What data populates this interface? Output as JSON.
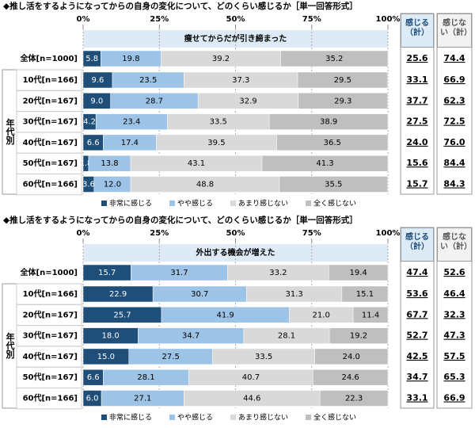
{
  "chart_data": [
    {
      "type": "bar",
      "orientation": "horizontal",
      "stacked": true,
      "title": "◆推し活をするようになってからの自身の変化について、どのくらい感じるか［単一回答形式］",
      "subtitle": "痩せてからだが引き締まった",
      "categories": [
        "全体[n=1000]",
        "10代[n=166]",
        "20代[n=167]",
        "30代[n=167]",
        "40代[n=167]",
        "50代[n=167]",
        "60代[n=166]"
      ],
      "group_label": "年代別",
      "xlim": [
        0,
        100
      ],
      "xticks": [
        {
          "value": 0,
          "label": "0%"
        },
        {
          "value": 25,
          "label": "25%"
        },
        {
          "value": 50,
          "label": "50%"
        },
        {
          "value": 75,
          "label": "75%"
        },
        {
          "value": 100,
          "label": "100%"
        }
      ],
      "grid": true,
      "legend": "bottom",
      "series": [
        {
          "name": "非常に感じる",
          "color": "#1f4e79",
          "values": [
            5.8,
            9.6,
            9.0,
            4.2,
            6.6,
            1.8,
            3.6
          ],
          "value_labels": [
            "5.8",
            "9.6",
            "9.0",
            "4.2",
            "6.6",
            "1.8",
            "3.6"
          ]
        },
        {
          "name": "やや感じる",
          "color": "#9dc3e6",
          "values": [
            19.8,
            23.5,
            28.7,
            23.4,
            17.4,
            13.8,
            12.0
          ],
          "value_labels": [
            "19.8",
            "23.5",
            "28.7",
            "23.4",
            "17.4",
            "13.8",
            "12.0"
          ]
        },
        {
          "name": "あまり感じない",
          "color": "#d9d9d9",
          "values": [
            39.2,
            37.3,
            32.9,
            33.5,
            39.5,
            43.1,
            48.8
          ]
        },
        {
          "name": "全く感じない",
          "color": "#bfbfbf",
          "values": [
            35.2,
            29.5,
            29.3,
            38.9,
            36.5,
            41.3,
            35.5
          ]
        }
      ],
      "totals": [
        {
          "name": "感じる（計）",
          "values": [
            25.6,
            33.1,
            37.7,
            27.5,
            24.0,
            15.6,
            15.7
          ],
          "value_labels": [
            "25.6",
            "33.1",
            "37.7",
            "27.5",
            "24.0",
            "15.6",
            "15.7"
          ]
        },
        {
          "name": "感じない（計）",
          "values": [
            74.4,
            66.9,
            62.3,
            72.5,
            76.0,
            84.4,
            84.3
          ],
          "value_labels": [
            "74.4",
            "66.9",
            "62.3",
            "72.5",
            "76.0",
            "84.4",
            "84.3"
          ]
        }
      ]
    },
    {
      "type": "bar",
      "orientation": "horizontal",
      "stacked": true,
      "title": "◆推し活をするようになってからの自身の変化について、どのくらい感じるか［単一回答形式］",
      "subtitle": "外出する機会が増えた",
      "categories": [
        "全体[n=1000]",
        "10代[n=166]",
        "20代[n=167]",
        "30代[n=167]",
        "40代[n=167]",
        "50代[n=167]",
        "60代[n=166]"
      ],
      "group_label": "年代別",
      "xlim": [
        0,
        100
      ],
      "xticks": [
        {
          "value": 0,
          "label": "0%"
        },
        {
          "value": 25,
          "label": "25%"
        },
        {
          "value": 50,
          "label": "50%"
        },
        {
          "value": 75,
          "label": "75%"
        },
        {
          "value": 100,
          "label": "100%"
        }
      ],
      "grid": true,
      "legend": "bottom",
      "series": [
        {
          "name": "非常に感じる",
          "color": "#1f4e79",
          "values": [
            15.7,
            22.9,
            25.7,
            18.0,
            15.0,
            6.6,
            6.0
          ],
          "value_labels": [
            "15.7",
            "22.9",
            "25.7",
            "18.0",
            "15.0",
            "6.6",
            "6.0"
          ]
        },
        {
          "name": "やや感じる",
          "color": "#9dc3e6",
          "values": [
            31.7,
            30.7,
            41.9,
            34.7,
            27.5,
            28.1,
            27.1
          ]
        },
        {
          "name": "あまり感じない",
          "color": "#d9d9d9",
          "values": [
            33.2,
            31.3,
            21.0,
            28.1,
            33.5,
            40.7,
            44.6
          ],
          "value_labels": [
            "33.2",
            "31.3",
            "21.0",
            "28.1",
            "33.5",
            "40.7",
            "44.6"
          ]
        },
        {
          "name": "全く感じない",
          "color": "#bfbfbf",
          "values": [
            19.4,
            15.1,
            11.4,
            19.2,
            24.0,
            24.6,
            22.3
          ],
          "value_labels": [
            "19.4",
            "15.1",
            "11.4",
            "19.2",
            "24.0",
            "24.6",
            "22.3"
          ]
        }
      ],
      "totals": [
        {
          "name": "感じる（計）",
          "values": [
            47.4,
            53.6,
            67.7,
            52.7,
            42.5,
            34.7,
            33.1
          ]
        },
        {
          "name": "感じない（計）",
          "values": [
            52.6,
            46.4,
            32.3,
            47.3,
            57.5,
            65.3,
            66.9
          ]
        }
      ]
    }
  ]
}
